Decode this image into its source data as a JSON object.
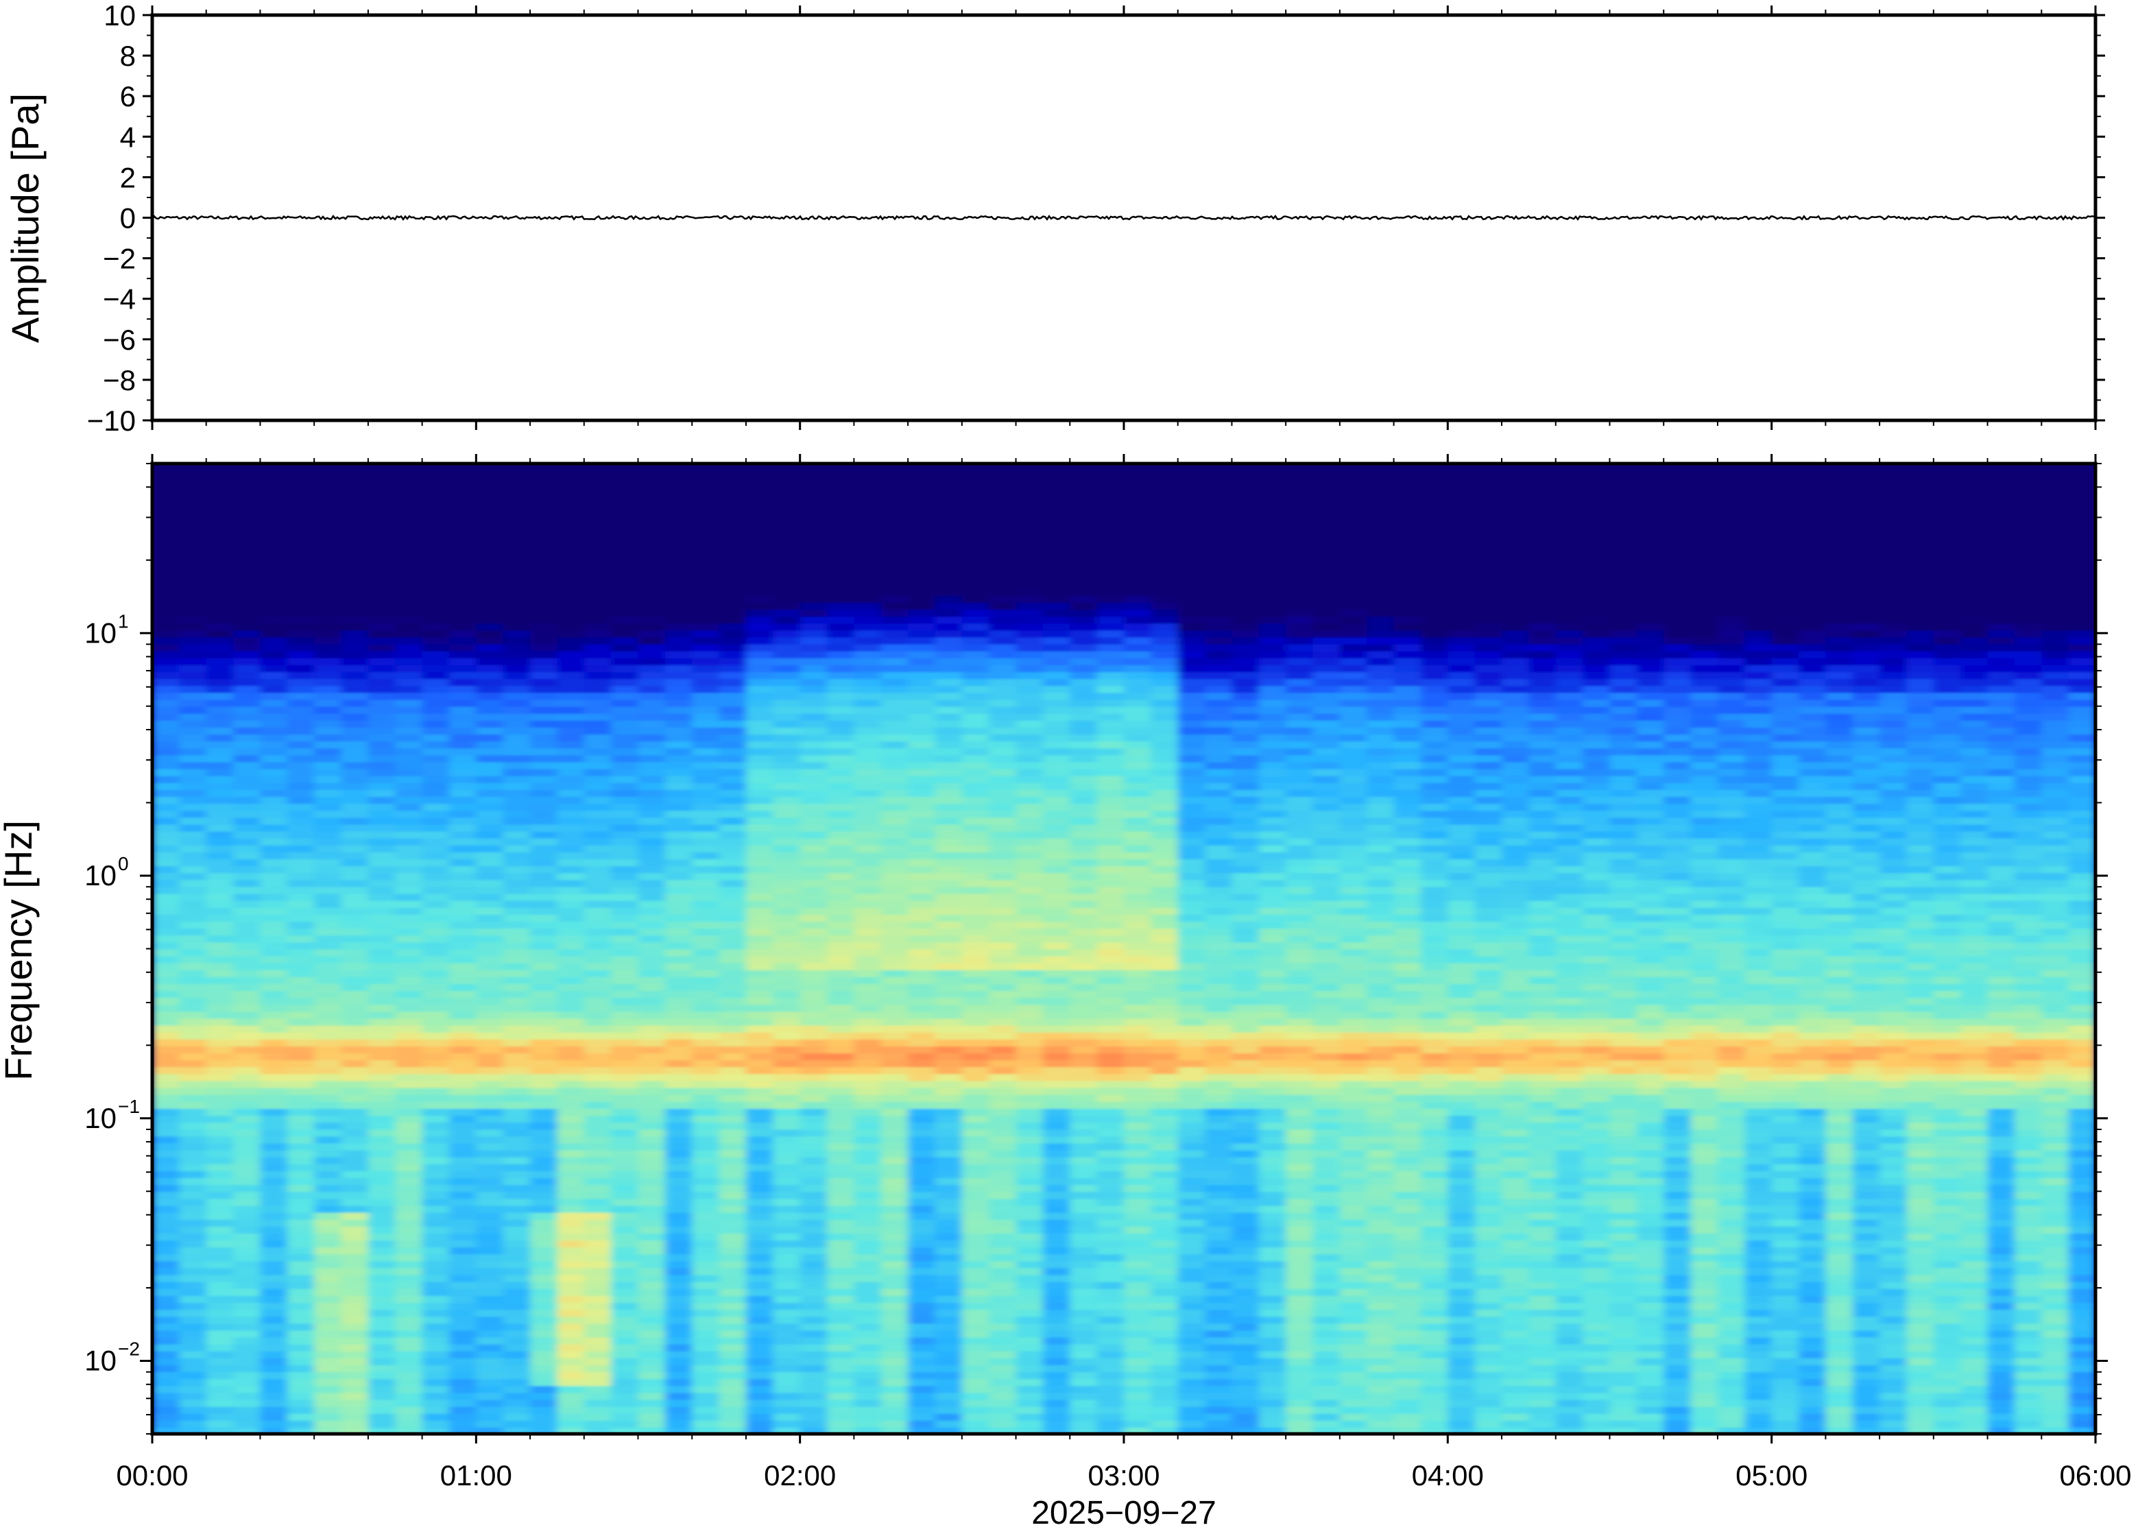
{
  "chart_data": [
    {
      "type": "line",
      "title": "",
      "ylabel": "Amplitude [Pa]",
      "ylim": [
        -10,
        10
      ],
      "yticks": [
        {
          "value": 10,
          "label": "10"
        },
        {
          "value": 8,
          "label": "8"
        },
        {
          "value": 6,
          "label": "6"
        },
        {
          "value": 4,
          "label": "4"
        },
        {
          "value": 2,
          "label": "2"
        },
        {
          "value": 0,
          "label": "0"
        },
        {
          "value": -2,
          "label": "−2"
        },
        {
          "value": -4,
          "label": "−4"
        },
        {
          "value": -6,
          "label": "−6"
        },
        {
          "value": -8,
          "label": "−8"
        },
        {
          "value": -10,
          "label": "−10"
        }
      ],
      "series": [
        {
          "color": "#000000",
          "values": [
            0,
            0.02,
            -0.02,
            0.03,
            -0.03,
            0.02,
            -0.02,
            0
          ]
        }
      ],
      "description_of_signal": "near-zero noise trace across 00:00–06:00"
    },
    {
      "type": "heatmap",
      "ylabel": "Frequency [Hz]",
      "y_scale": "log",
      "ylim_hz": [
        0.005,
        50
      ],
      "yticks": [
        {
          "value": 10,
          "base": "10",
          "exp": "1"
        },
        {
          "value": 1,
          "base": "10",
          "exp": "0"
        },
        {
          "value": 0.1,
          "base": "10",
          "exp": "−1"
        },
        {
          "value": 0.01,
          "base": "10",
          "exp": "−2"
        }
      ],
      "colormap": "jet-like",
      "colors": [
        "#0a0073",
        "#0000c8",
        "#1e64ff",
        "#28b4ff",
        "#5ae6e6",
        "#a0f0b4",
        "#e6f08c",
        "#ffc864",
        "#ff8c50"
      ],
      "features": "microseism band peak near 0.18 Hz; broadband energy rising to ~10 Hz between 01:50 and 03:15"
    }
  ],
  "x_axis": {
    "ticks": [
      "00:00",
      "01:00",
      "02:00",
      "03:00",
      "04:00",
      "05:00",
      "06:00"
    ],
    "date_label": "2025−09−27"
  }
}
